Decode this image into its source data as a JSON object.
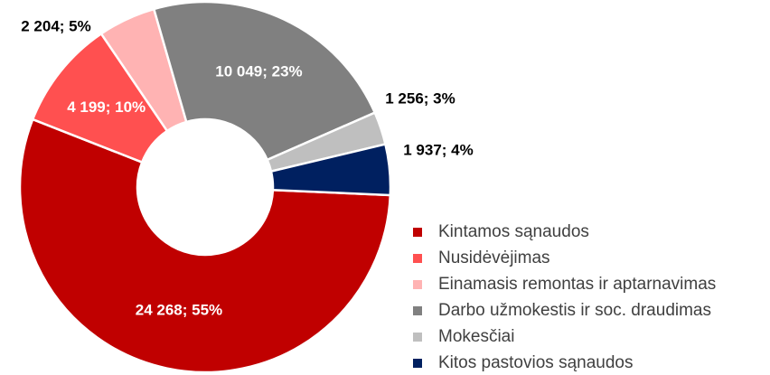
{
  "chart_data": {
    "type": "donut",
    "categories": [
      "Kintamos sąnaudos",
      "Nusidėvėjimas",
      "Einamasis remontas ir aptarnavimas",
      "Darbo užmokestis ir soc. draudimas",
      "Mokesčiai",
      "Kitos pastovios sąnaudos"
    ],
    "values": [
      24268,
      4199,
      2204,
      10049,
      1256,
      1937
    ],
    "value_labels": [
      "24 268; 55%",
      "4 199; 10%",
      "2 204;  5%",
      "10 049; 23%",
      "1 256; 3%",
      "1 937; 4%"
    ],
    "colors": [
      "#c00000",
      "#ff5050",
      "#ffb3b3",
      "#808080",
      "#bfbfbf",
      "#002060"
    ],
    "legend": "right"
  }
}
